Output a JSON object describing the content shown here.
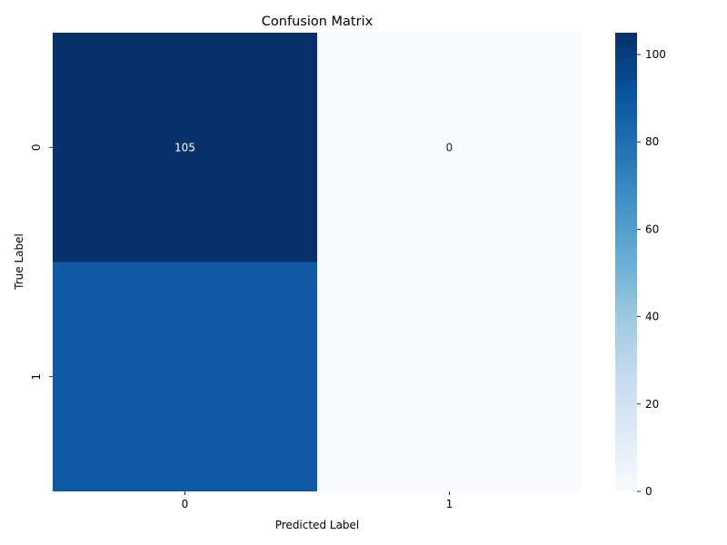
{
  "chart_data": {
    "type": "heatmap",
    "title": "Confusion Matrix",
    "xlabel": "Predicted Label",
    "ylabel": "True Label",
    "x_categories": [
      "0",
      "1"
    ],
    "y_categories": [
      "0",
      "1"
    ],
    "values": [
      [
        105,
        0
      ],
      [
        88,
        0
      ]
    ],
    "cell_labels": [
      [
        "105",
        "0"
      ],
      [
        "",
        ""
      ]
    ],
    "colormap": "Blues",
    "colorbar": {
      "min": 0,
      "max": 105,
      "ticks": [
        0,
        20,
        40,
        60,
        80,
        100
      ],
      "tick_labels": [
        "0",
        "20",
        "40",
        "60",
        "80",
        "100"
      ]
    }
  }
}
